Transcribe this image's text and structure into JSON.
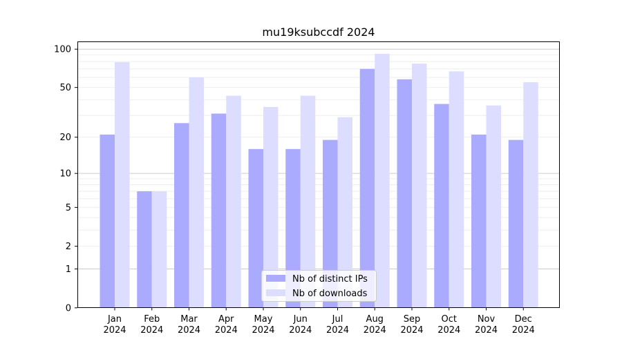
{
  "chart_data": {
    "type": "bar",
    "title": "mu19ksubccdf 2024",
    "xlabel": "",
    "ylabel": "",
    "yscale": "log10(1+y)",
    "ylim": [
      0,
      110
    ],
    "yticks": [
      0,
      1,
      2,
      5,
      10,
      20,
      50,
      100
    ],
    "grid": true,
    "legend_position": "bottom-center",
    "categories": [
      "Jan\n2024",
      "Feb\n2024",
      "Mar\n2024",
      "Apr\n2024",
      "May\n2024",
      "Jun\n2024",
      "Jul\n2024",
      "Aug\n2024",
      "Sep\n2024",
      "Oct\n2024",
      "Nov\n2024",
      "Dec\n2024"
    ],
    "series": [
      {
        "name": "Nb of distinct IPs",
        "color": "#aaaaff",
        "values": [
          21,
          7,
          26,
          31,
          16,
          16,
          19,
          70,
          58,
          37,
          21,
          19
        ]
      },
      {
        "name": "Nb of downloads",
        "color": "#ddddff",
        "values": [
          79,
          7,
          60,
          43,
          35,
          43,
          29,
          92,
          77,
          67,
          36,
          55
        ]
      }
    ]
  }
}
